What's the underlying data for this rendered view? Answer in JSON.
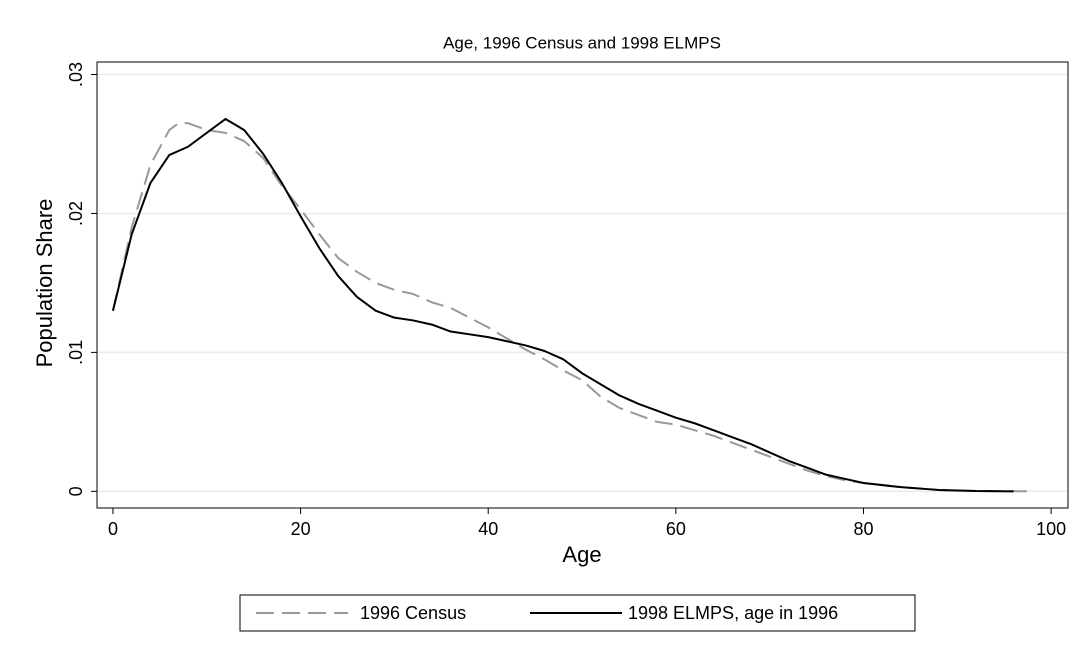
{
  "chart_data": {
    "type": "line",
    "title": "Age, 1996 Census and 1998 ELMPS",
    "xlabel": "Age",
    "ylabel": "Population Share",
    "xlim": [
      -1.7,
      101.8
    ],
    "xticks": [
      0,
      20,
      40,
      60,
      80,
      100
    ],
    "ylim": [
      -0.0012,
      0.0309
    ],
    "yticks": [
      0,
      {
        "value": 0.01,
        "label": ".01"
      },
      {
        "value": 0.02,
        "label": ".02"
      },
      {
        "value": 0.03,
        "label": ".03"
      }
    ],
    "grid": true,
    "legend": "bottom",
    "series": [
      {
        "name": "1996 Census",
        "color": "#999999",
        "style": "dashed",
        "x": [
          0,
          2,
          4,
          6,
          7,
          8,
          10,
          12,
          14,
          16,
          18,
          20,
          22,
          24,
          26,
          28,
          30,
          32,
          34,
          36,
          38,
          40,
          42,
          44,
          46,
          48,
          50,
          52,
          54,
          56,
          58,
          60,
          62,
          64,
          66,
          68,
          70,
          72,
          74,
          76,
          78,
          80,
          84,
          88,
          92,
          98
        ],
        "values": [
          0.013,
          0.019,
          0.0235,
          0.026,
          0.0265,
          0.0265,
          0.026,
          0.0258,
          0.0252,
          0.024,
          0.022,
          0.0203,
          0.0185,
          0.0168,
          0.0158,
          0.015,
          0.0145,
          0.0142,
          0.0136,
          0.0132,
          0.0125,
          0.0118,
          0.011,
          0.0102,
          0.0095,
          0.0087,
          0.008,
          0.0068,
          0.006,
          0.0055,
          0.005,
          0.0048,
          0.0044,
          0.004,
          0.0035,
          0.003,
          0.0025,
          0.002,
          0.0015,
          0.0011,
          0.0008,
          0.0006,
          0.0003,
          0.0001,
          3e-05,
          0
        ]
      },
      {
        "name": "1998 ELMPS, age in 1996",
        "color": "#000000",
        "style": "solid",
        "x": [
          0,
          2,
          4,
          6,
          8,
          10,
          12,
          14,
          16,
          18,
          20,
          22,
          24,
          26,
          28,
          30,
          32,
          34,
          36,
          38,
          40,
          42,
          44,
          46,
          48,
          50,
          52,
          54,
          56,
          58,
          60,
          62,
          64,
          66,
          68,
          70,
          72,
          74,
          76,
          78,
          80,
          84,
          88,
          92,
          96
        ],
        "values": [
          0.013,
          0.0185,
          0.0222,
          0.0242,
          0.0248,
          0.0258,
          0.0268,
          0.026,
          0.0243,
          0.0222,
          0.0198,
          0.0175,
          0.0155,
          0.014,
          0.013,
          0.0125,
          0.0123,
          0.012,
          0.0115,
          0.0113,
          0.0111,
          0.0108,
          0.0105,
          0.0101,
          0.0095,
          0.0085,
          0.0077,
          0.0069,
          0.0063,
          0.0058,
          0.0053,
          0.0049,
          0.0044,
          0.0039,
          0.0034,
          0.0028,
          0.0022,
          0.0017,
          0.0012,
          0.0009,
          0.0006,
          0.0003,
          0.0001,
          2e-05,
          0
        ]
      }
    ]
  }
}
